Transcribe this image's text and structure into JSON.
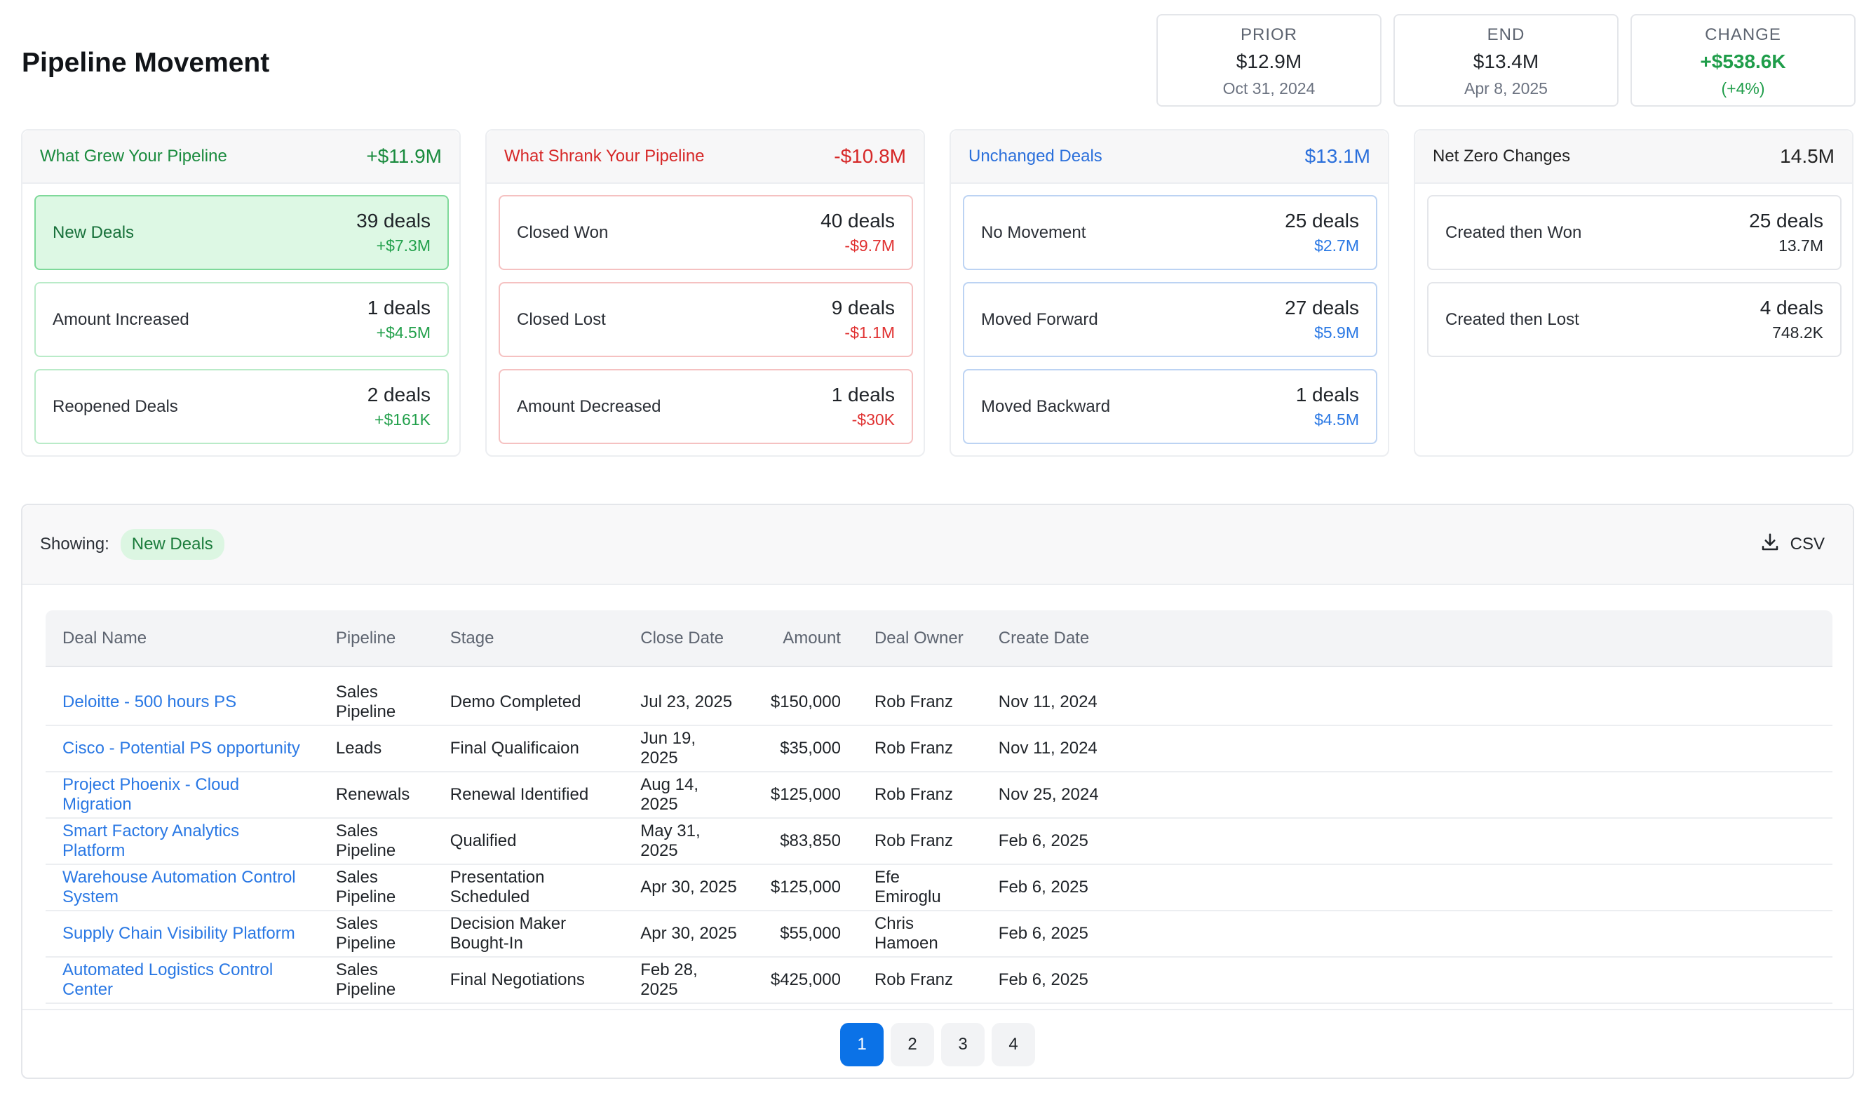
{
  "page": {
    "title": "Pipeline Movement"
  },
  "summary": {
    "prior": {
      "label": "PRIOR",
      "value": "$12.9M",
      "date": "Oct 31, 2024"
    },
    "end": {
      "label": "END",
      "value": "$13.4M",
      "date": "Apr 8, 2025"
    },
    "change": {
      "label": "CHANGE",
      "value": "+$538.6K",
      "pct": "(+4%)"
    }
  },
  "panels": {
    "grew": {
      "title": "What Grew Your Pipeline",
      "total": "+$11.9M",
      "cards": [
        {
          "name": "New Deals",
          "count": "39 deals",
          "amount": "+$7.3M"
        },
        {
          "name": "Amount Increased",
          "count": "1 deals",
          "amount": "+$4.5M"
        },
        {
          "name": "Reopened Deals",
          "count": "2 deals",
          "amount": "+$161K"
        }
      ]
    },
    "shrank": {
      "title": "What Shrank Your Pipeline",
      "total": "-$10.8M",
      "cards": [
        {
          "name": "Closed Won",
          "count": "40 deals",
          "amount": "-$9.7M"
        },
        {
          "name": "Closed Lost",
          "count": "9 deals",
          "amount": "-$1.1M"
        },
        {
          "name": "Amount Decreased",
          "count": "1 deals",
          "amount": "-$30K"
        }
      ]
    },
    "unchanged": {
      "title": "Unchanged Deals",
      "total": "$13.1M",
      "cards": [
        {
          "name": "No Movement",
          "count": "25 deals",
          "amount": "$2.7M"
        },
        {
          "name": "Moved Forward",
          "count": "27 deals",
          "amount": "$5.9M"
        },
        {
          "name": "Moved Backward",
          "count": "1 deals",
          "amount": "$4.5M"
        }
      ]
    },
    "netzero": {
      "title": "Net Zero Changes",
      "total": "14.5M",
      "cards": [
        {
          "name": "Created then Won",
          "count": "25 deals",
          "amount": "13.7M"
        },
        {
          "name": "Created then Lost",
          "count": "4 deals",
          "amount": "748.2K"
        }
      ]
    }
  },
  "table": {
    "showing_label": "Showing:",
    "filter": "New Deals",
    "csv_label": "CSV",
    "columns": [
      "Deal Name",
      "Pipeline",
      "Stage",
      "Close Date",
      "Amount",
      "Deal Owner",
      "Create Date"
    ],
    "rows": [
      [
        "Deloitte - 500 hours PS",
        "Sales Pipeline",
        "Demo Completed",
        "Jul 23, 2025",
        "$150,000",
        "Rob Franz",
        "Nov 11, 2024"
      ],
      [
        "Cisco - Potential PS opportunity",
        "Leads",
        "Final Qualificaion",
        "Jun 19, 2025",
        "$35,000",
        "Rob Franz",
        "Nov 11, 2024"
      ],
      [
        "Project Phoenix - Cloud Migration",
        "Renewals",
        "Renewal Identified",
        "Aug 14, 2025",
        "$125,000",
        "Rob Franz",
        "Nov 25, 2024"
      ],
      [
        "Smart Factory Analytics Platform",
        "Sales Pipeline",
        "Qualified",
        "May 31, 2025",
        "$83,850",
        "Rob Franz",
        "Feb 6, 2025"
      ],
      [
        "Warehouse Automation Control System",
        "Sales Pipeline",
        "Presentation Scheduled",
        "Apr 30, 2025",
        "$125,000",
        "Efe Emiroglu",
        "Feb 6, 2025"
      ],
      [
        "Supply Chain Visibility Platform",
        "Sales Pipeline",
        "Decision Maker Bought-In",
        "Apr 30, 2025",
        "$55,000",
        "Chris Hamoen",
        "Feb 6, 2025"
      ],
      [
        "Automated Logistics Control Center",
        "Sales Pipeline",
        "Final Negotiations",
        "Feb 28, 2025",
        "$425,000",
        "Rob Franz",
        "Feb 6, 2025"
      ]
    ]
  },
  "pagination": {
    "pages": [
      "1",
      "2",
      "3",
      "4"
    ],
    "current": "1"
  },
  "colors": {
    "accent": "#0b72e7",
    "grew": "#1a8b3e",
    "shrank": "#d62828",
    "unchanged": "#2a6fdb"
  },
  "icons": {
    "csv": "download-icon"
  }
}
